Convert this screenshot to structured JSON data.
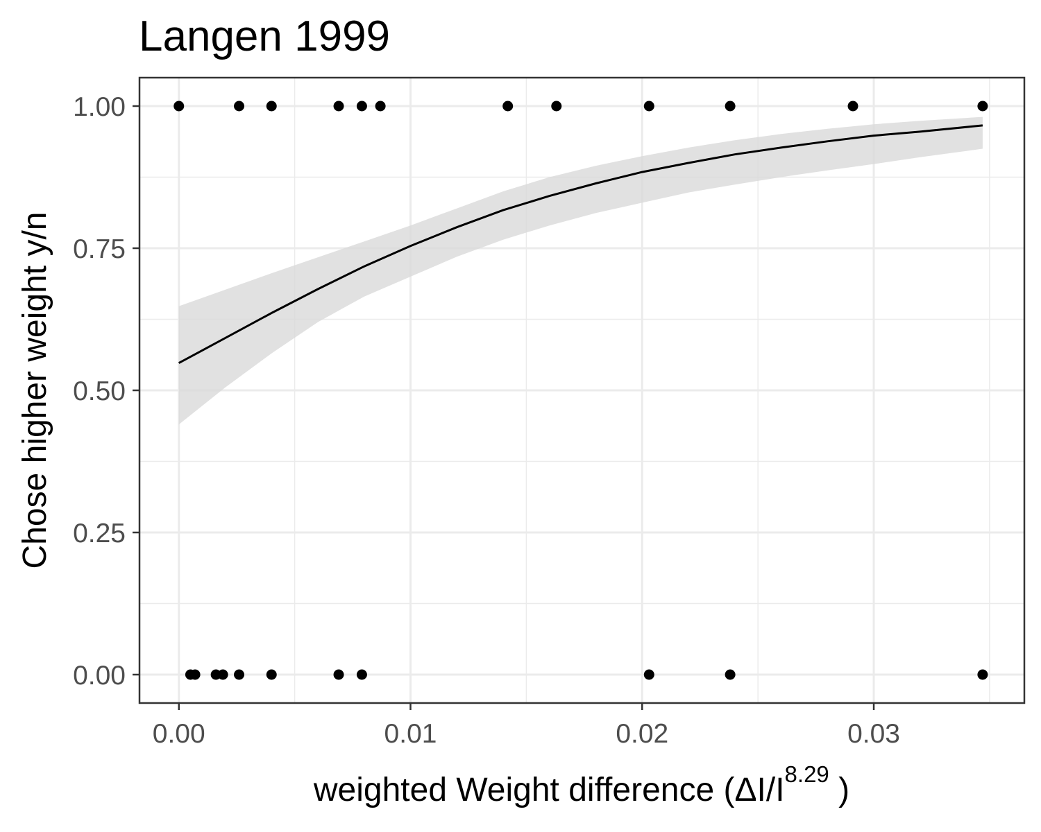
{
  "chart_data": {
    "type": "scatter",
    "title": "Langen 1999",
    "xlabel": {
      "main": "weighted  Weight  difference (ΔI/I",
      "superscript": "8.29",
      "suffix": " )"
    },
    "ylabel": "Chose higher weight y/n",
    "xlim": [
      -0.0017,
      0.0365
    ],
    "ylim": [
      -0.05,
      1.05
    ],
    "x_ticks": [
      0.0,
      0.01,
      0.02,
      0.03
    ],
    "x_tick_labels": [
      "0.00",
      "0.01",
      "0.02",
      "0.03"
    ],
    "y_ticks": [
      0.0,
      0.25,
      0.5,
      0.75,
      1.0
    ],
    "y_tick_labels": [
      "0.00",
      "0.25",
      "0.50",
      "0.75",
      "1.00"
    ],
    "grid": true,
    "legend": "none",
    "colors": {
      "points": "#000000",
      "line": "#000000",
      "ribbon": "#d9d9d9",
      "grid": "#ebebeb",
      "panel_border": "#333333",
      "tick_label": "#4d4d4d"
    },
    "points": [
      {
        "x": 0.0,
        "y": 1
      },
      {
        "x": 0.0026,
        "y": 1
      },
      {
        "x": 0.004,
        "y": 1
      },
      {
        "x": 0.0069,
        "y": 1
      },
      {
        "x": 0.0079,
        "y": 1
      },
      {
        "x": 0.0087,
        "y": 1
      },
      {
        "x": 0.0142,
        "y": 1
      },
      {
        "x": 0.0163,
        "y": 1
      },
      {
        "x": 0.0203,
        "y": 1
      },
      {
        "x": 0.0238,
        "y": 1
      },
      {
        "x": 0.0291,
        "y": 1
      },
      {
        "x": 0.0347,
        "y": 1
      },
      {
        "x": 0.0005,
        "y": 0
      },
      {
        "x": 0.0007,
        "y": 0
      },
      {
        "x": 0.0016,
        "y": 0
      },
      {
        "x": 0.0019,
        "y": 0
      },
      {
        "x": 0.0026,
        "y": 0
      },
      {
        "x": 0.004,
        "y": 0
      },
      {
        "x": 0.0069,
        "y": 0
      },
      {
        "x": 0.0079,
        "y": 0
      },
      {
        "x": 0.0203,
        "y": 0
      },
      {
        "x": 0.0238,
        "y": 0
      },
      {
        "x": 0.0347,
        "y": 0
      }
    ],
    "fit": {
      "x": [
        0.0,
        0.002,
        0.004,
        0.006,
        0.008,
        0.01,
        0.012,
        0.014,
        0.016,
        0.018,
        0.02,
        0.022,
        0.024,
        0.026,
        0.028,
        0.03,
        0.032,
        0.0347
      ],
      "y": [
        0.548,
        0.592,
        0.636,
        0.678,
        0.718,
        0.754,
        0.787,
        0.817,
        0.842,
        0.864,
        0.884,
        0.9,
        0.915,
        0.927,
        0.938,
        0.948,
        0.955,
        0.966
      ],
      "lower": [
        0.44,
        0.505,
        0.565,
        0.62,
        0.665,
        0.7,
        0.735,
        0.765,
        0.79,
        0.812,
        0.83,
        0.848,
        0.862,
        0.875,
        0.887,
        0.898,
        0.91,
        0.925
      ],
      "upper": [
        0.648,
        0.677,
        0.706,
        0.734,
        0.762,
        0.79,
        0.82,
        0.85,
        0.875,
        0.895,
        0.912,
        0.927,
        0.94,
        0.951,
        0.96,
        0.968,
        0.974,
        0.981
      ]
    }
  }
}
